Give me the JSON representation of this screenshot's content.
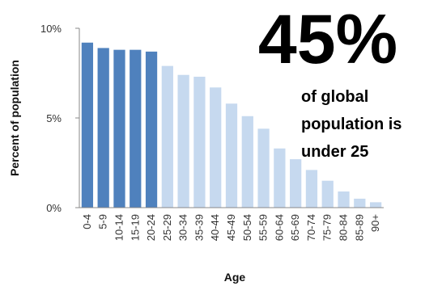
{
  "chart_data": {
    "type": "bar",
    "categories": [
      "0-4",
      "5-9",
      "10-14",
      "15-19",
      "20-24",
      "25-29",
      "30-34",
      "35-39",
      "40-44",
      "45-49",
      "50-54",
      "55-59",
      "60-64",
      "65-69",
      "70-74",
      "75-79",
      "80-84",
      "85-89",
      "90+"
    ],
    "values": [
      9.2,
      8.9,
      8.8,
      8.8,
      8.7,
      7.9,
      7.4,
      7.3,
      6.7,
      5.8,
      5.1,
      4.4,
      3.3,
      2.7,
      2.1,
      1.5,
      0.9,
      0.5,
      0.3
    ],
    "highlight_count": 5,
    "ylim": [
      0,
      10
    ],
    "yticks": [
      0,
      5,
      10
    ],
    "ytick_labels": [
      "0%",
      "5%",
      "10%"
    ],
    "xlabel": "Age",
    "ylabel": "Percent of population",
    "grid": false,
    "colors": {
      "highlight": "#4f81bd",
      "normal": "#c6d9ef",
      "axis": "#888888"
    }
  },
  "annotation": {
    "stat": "45%",
    "lines": [
      "of global",
      "population is",
      "under 25"
    ]
  }
}
